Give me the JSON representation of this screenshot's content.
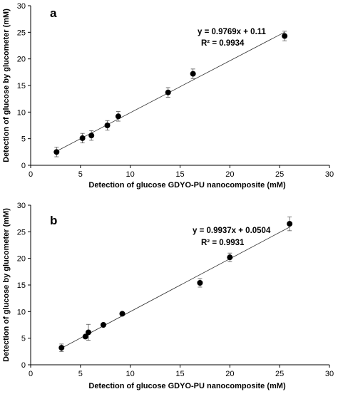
{
  "chart_data": [
    {
      "type": "scatter",
      "panel_label": "a",
      "xlabel": "Detection of glucose GDYO-PU nanocomposite (mM)",
      "ylabel": "Detection of glucose by glucometer (mM)",
      "xlim": [
        0,
        30
      ],
      "ylim": [
        0,
        30
      ],
      "xticks": [
        0,
        5,
        10,
        15,
        20,
        25,
        30
      ],
      "yticks": [
        0,
        5,
        10,
        15,
        20,
        25,
        30
      ],
      "equation": "y = 0.9769x + 0.11",
      "r_squared": "R² = 0.9934",
      "trendline": {
        "slope": 0.9769,
        "intercept": 0.11,
        "x_range": [
          2.6,
          25.5
        ]
      },
      "points": [
        {
          "x": 2.6,
          "y": 2.5,
          "err": 0.9
        },
        {
          "x": 5.2,
          "y": 5.1,
          "err": 0.9
        },
        {
          "x": 6.1,
          "y": 5.6,
          "err": 0.9
        },
        {
          "x": 7.7,
          "y": 7.5,
          "err": 0.9
        },
        {
          "x": 8.8,
          "y": 9.2,
          "err": 0.9
        },
        {
          "x": 13.8,
          "y": 13.7,
          "err": 0.9
        },
        {
          "x": 16.3,
          "y": 17.2,
          "err": 0.9
        },
        {
          "x": 25.5,
          "y": 24.3,
          "err": 0.9
        }
      ]
    },
    {
      "type": "scatter",
      "panel_label": "b",
      "xlabel": "Detection of glucose GDYO-PU nanocomposite (mM)",
      "ylabel": "Detection of glucose by glucometer (mM)",
      "xlim": [
        0,
        30
      ],
      "ylim": [
        0,
        30
      ],
      "xticks": [
        0,
        5,
        10,
        15,
        20,
        25,
        30
      ],
      "yticks": [
        0,
        5,
        10,
        15,
        20,
        25,
        30
      ],
      "equation": "y = 0.9937x + 0.0504",
      "r_squared": "R² = 0.9931",
      "trendline": {
        "slope": 0.9937,
        "intercept": 0.0504,
        "x_range": [
          3.1,
          26.0
        ]
      },
      "points": [
        {
          "x": 3.1,
          "y": 3.2,
          "err": 0.7
        },
        {
          "x": 5.5,
          "y": 5.3,
          "err": 0.3
        },
        {
          "x": 5.8,
          "y": 6.1,
          "err": 1.5
        },
        {
          "x": 7.3,
          "y": 7.5,
          "err": 0.3
        },
        {
          "x": 9.2,
          "y": 9.6,
          "err": 0.2
        },
        {
          "x": 17.0,
          "y": 15.4,
          "err": 0.8
        },
        {
          "x": 20.0,
          "y": 20.2,
          "err": 0.8
        },
        {
          "x": 26.0,
          "y": 26.5,
          "err": 1.3
        }
      ]
    }
  ]
}
